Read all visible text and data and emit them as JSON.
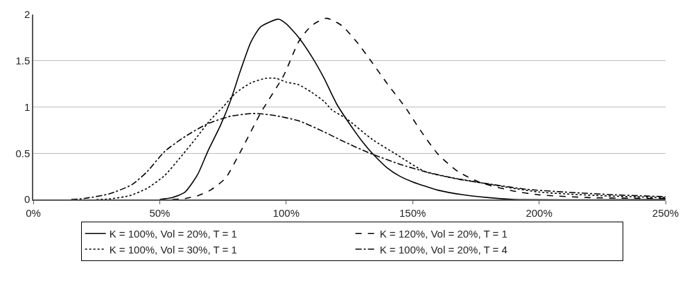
{
  "chart_data": {
    "type": "line",
    "xlim": [
      0,
      250
    ],
    "xticks": [
      {
        "value": 0,
        "label": "0%"
      },
      {
        "value": 50,
        "label": "50%"
      },
      {
        "value": 100,
        "label": "100%"
      },
      {
        "value": 150,
        "label": "150%"
      },
      {
        "value": 200,
        "label": "200%"
      },
      {
        "value": 250,
        "label": "250%"
      }
    ],
    "ylim": [
      0,
      2
    ],
    "yticks": [
      0,
      0.5,
      1,
      1.5,
      2
    ],
    "grid": "y",
    "legend": "bottom",
    "marker": "none",
    "series": [
      {
        "name": "K = 100%, Vol = 20%, T = 1",
        "color": "#000000",
        "line_style": "solid",
        "x": [
          50,
          55,
          60,
          65,
          69,
          74,
          78,
          82,
          86,
          90,
          97,
          100,
          105,
          110,
          115,
          118,
          120,
          125,
          130,
          134,
          140,
          145,
          150,
          160,
          170,
          180,
          190,
          250
        ],
        "values": [
          0,
          0.02,
          0.08,
          0.27,
          0.52,
          0.8,
          1.07,
          1.4,
          1.7,
          1.87,
          1.95,
          1.9,
          1.75,
          1.55,
          1.31,
          1.14,
          1.03,
          0.82,
          0.63,
          0.5,
          0.34,
          0.25,
          0.19,
          0.1,
          0.05,
          0.02,
          0,
          0
        ]
      },
      {
        "name": "K = 120%, Vol = 20%, T = 1",
        "color": "#000000",
        "line_style": "dashed",
        "x": [
          55,
          60,
          65,
          70,
          76,
          82,
          90,
          99,
          105,
          110,
          116,
          122,
          128,
          134,
          140,
          147,
          153,
          160,
          168,
          177,
          190,
          200,
          220,
          250
        ],
        "values": [
          0,
          0.01,
          0.04,
          0.1,
          0.23,
          0.52,
          0.94,
          1.34,
          1.71,
          1.88,
          1.96,
          1.88,
          1.7,
          1.48,
          1.25,
          1.0,
          0.75,
          0.49,
          0.3,
          0.18,
          0.09,
          0.05,
          0.02,
          0.01
        ]
      },
      {
        "name": "K = 100%, Vol = 30%, T = 1",
        "color": "#000000",
        "line_style": "dotted",
        "x": [
          25,
          30,
          38,
          45,
          52,
          58,
          64,
          70,
          75,
          80,
          86,
          92,
          96,
          100,
          105,
          110,
          115,
          118,
          124,
          134,
          144,
          155,
          177,
          200,
          225,
          250
        ],
        "values": [
          0,
          0.005,
          0.04,
          0.12,
          0.26,
          0.45,
          0.65,
          0.86,
          1.0,
          1.15,
          1.26,
          1.31,
          1.31,
          1.27,
          1.24,
          1.16,
          1.06,
          0.97,
          0.87,
          0.65,
          0.48,
          0.3,
          0.18,
          0.08,
          0.04,
          0.02
        ]
      },
      {
        "name": "K = 100%, Vol = 20%, T = 4",
        "color": "#000000",
        "line_style": "dashdot",
        "x": [
          15,
          20,
          30,
          39,
          45,
          52,
          60,
          69,
          78,
          87,
          95,
          105,
          115,
          124,
          134,
          145,
          155,
          168,
          182,
          195,
          210,
          230,
          250
        ],
        "values": [
          0,
          0.01,
          0.06,
          0.16,
          0.3,
          0.52,
          0.68,
          0.82,
          0.9,
          0.93,
          0.91,
          0.85,
          0.73,
          0.61,
          0.49,
          0.38,
          0.3,
          0.22,
          0.16,
          0.11,
          0.08,
          0.05,
          0.03
        ]
      }
    ]
  }
}
